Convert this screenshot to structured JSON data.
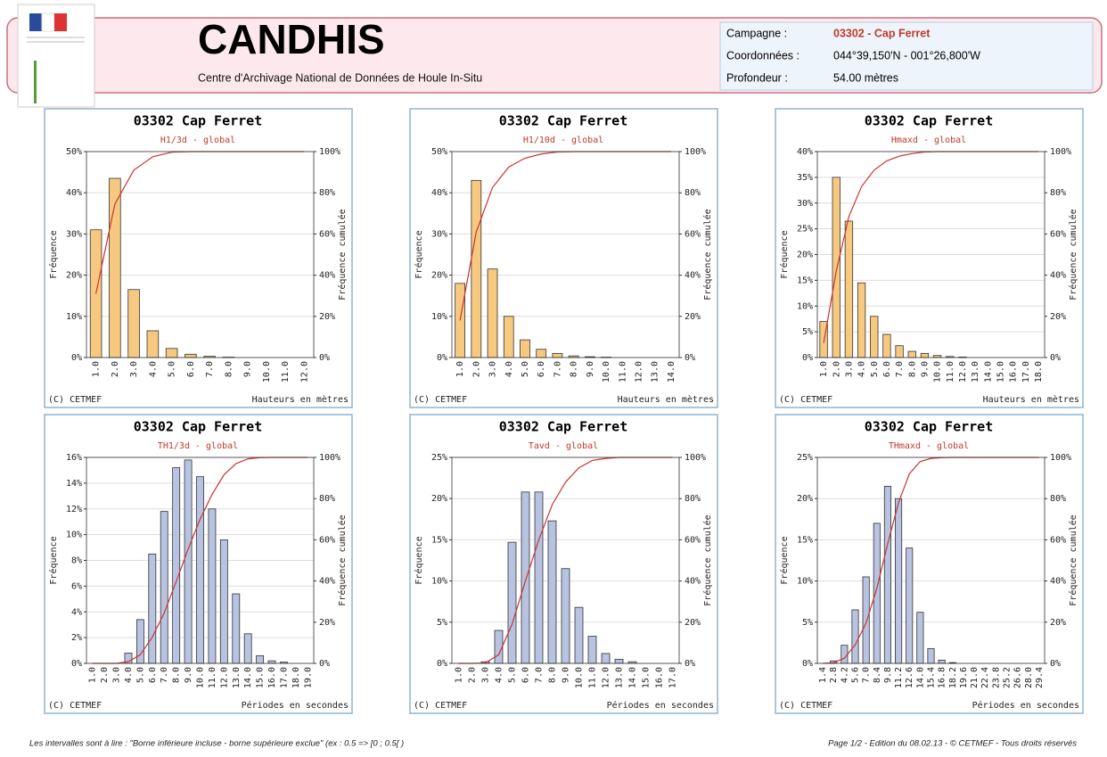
{
  "header": {
    "title": "CANDHIS",
    "subtitle": "Centre d'Archivage National de Données de Houle In-Situ",
    "fields": [
      {
        "label": "Campagne :",
        "value": "03302 - Cap Ferret"
      },
      {
        "label": "Coordonnées :",
        "value": "044°39,150'N - 001°26,800'W"
      },
      {
        "label": "Profondeur :",
        "value": "54.00 mètres"
      }
    ]
  },
  "chart_data": [
    {
      "type": "bar",
      "title": "03302 Cap Ferret",
      "subtitle": "H1/3d - global",
      "ylabel": "Fréquence",
      "y2label": "Fréquence cumulée",
      "xlabel": "Hauteurs en mètres",
      "credit": "(C) CETMEF",
      "grid": true,
      "categories": [
        "1.0",
        "2.0",
        "3.0",
        "4.0",
        "5.0",
        "6.0",
        "7.0",
        "8.0",
        "9.0",
        "10.0",
        "11.0",
        "12.0"
      ],
      "series": [
        {
          "color": "#f7c980",
          "values": [
            31,
            43.5,
            16.5,
            6.5,
            2.2,
            0.8,
            0.3,
            0.1,
            0,
            0,
            0,
            0
          ]
        },
        {
          "color": "#cc3333",
          "axis": "y2",
          "values": [
            31,
            74.5,
            91,
            97.5,
            99.7,
            100,
            100,
            100,
            100,
            100,
            100,
            100
          ]
        }
      ],
      "ylim": [
        0,
        50
      ],
      "yticks": [
        {
          "value": 0,
          "label": "0%"
        },
        {
          "value": 10,
          "label": "10%"
        },
        {
          "value": 20,
          "label": "20%"
        },
        {
          "value": 30,
          "label": "30%"
        },
        {
          "value": 40,
          "label": "40%"
        },
        {
          "value": 50,
          "label": "50%"
        }
      ],
      "y2lim": [
        0,
        100
      ],
      "y2ticks": [
        {
          "value": 0,
          "label": "0%"
        },
        {
          "value": 20,
          "label": "20%"
        },
        {
          "value": 40,
          "label": "40%"
        },
        {
          "value": 60,
          "label": "60%"
        },
        {
          "value": 80,
          "label": "80%"
        },
        {
          "value": 100,
          "label": "100%"
        }
      ]
    },
    {
      "type": "bar",
      "title": "03302 Cap Ferret",
      "subtitle": "H1/10d - global",
      "ylabel": "Fréquence",
      "y2label": "Fréquence cumulée",
      "xlabel": "Hauteurs en mètres",
      "credit": "(C) CETMEF",
      "grid": true,
      "categories": [
        "1.0",
        "2.0",
        "3.0",
        "4.0",
        "5.0",
        "6.0",
        "7.0",
        "8.0",
        "9.0",
        "10.0",
        "11.0",
        "12.0",
        "13.0",
        "14.0"
      ],
      "series": [
        {
          "color": "#f7c980",
          "values": [
            18,
            43,
            21.5,
            10,
            4.3,
            2,
            1,
            0.4,
            0.2,
            0.1,
            0,
            0,
            0,
            0
          ]
        },
        {
          "color": "#cc3333",
          "axis": "y2",
          "values": [
            18,
            61,
            82.5,
            92.5,
            96.8,
            98.8,
            99.8,
            100,
            100,
            100,
            100,
            100,
            100,
            100
          ]
        }
      ],
      "ylim": [
        0,
        50
      ],
      "yticks": [
        {
          "value": 0,
          "label": "0%"
        },
        {
          "value": 10,
          "label": "10%"
        },
        {
          "value": 20,
          "label": "20%"
        },
        {
          "value": 30,
          "label": "30%"
        },
        {
          "value": 40,
          "label": "40%"
        },
        {
          "value": 50,
          "label": "50%"
        }
      ],
      "y2lim": [
        0,
        100
      ],
      "y2ticks": [
        {
          "value": 0,
          "label": "0%"
        },
        {
          "value": 20,
          "label": "20%"
        },
        {
          "value": 40,
          "label": "40%"
        },
        {
          "value": 60,
          "label": "60%"
        },
        {
          "value": 80,
          "label": "80%"
        },
        {
          "value": 100,
          "label": "100%"
        }
      ]
    },
    {
      "type": "bar",
      "title": "03302 Cap Ferret",
      "subtitle": "Hmaxd - global",
      "ylabel": "Fréquence",
      "y2label": "Fréquence cumulée",
      "xlabel": "Hauteurs en mètres",
      "credit": "(C) CETMEF",
      "grid": true,
      "categories": [
        "1.0",
        "2.0",
        "3.0",
        "4.0",
        "5.0",
        "6.0",
        "7.0",
        "8.0",
        "9.0",
        "10.0",
        "11.0",
        "12.0",
        "13.0",
        "14.0",
        "15.0",
        "16.0",
        "17.0",
        "18.0"
      ],
      "series": [
        {
          "color": "#f7c980",
          "values": [
            7,
            35,
            26.5,
            14.5,
            8,
            4.5,
            2.3,
            1.2,
            0.8,
            0.4,
            0.2,
            0.1,
            0,
            0,
            0,
            0,
            0,
            0
          ]
        },
        {
          "color": "#cc3333",
          "axis": "y2",
          "values": [
            7,
            42,
            68.5,
            83,
            91,
            95.5,
            97.8,
            99,
            99.8,
            100,
            100,
            100,
            100,
            100,
            100,
            100,
            100,
            100
          ]
        }
      ],
      "ylim": [
        0,
        40
      ],
      "yticks": [
        {
          "value": 0,
          "label": "0%"
        },
        {
          "value": 5,
          "label": "5%"
        },
        {
          "value": 10,
          "label": "10%"
        },
        {
          "value": 15,
          "label": "15%"
        },
        {
          "value": 20,
          "label": "20%"
        },
        {
          "value": 25,
          "label": "25%"
        },
        {
          "value": 30,
          "label": "30%"
        },
        {
          "value": 35,
          "label": "35%"
        },
        {
          "value": 40,
          "label": "40%"
        }
      ],
      "y2lim": [
        0,
        100
      ],
      "y2ticks": [
        {
          "value": 0,
          "label": "0%"
        },
        {
          "value": 20,
          "label": "20%"
        },
        {
          "value": 40,
          "label": "40%"
        },
        {
          "value": 60,
          "label": "60%"
        },
        {
          "value": 80,
          "label": "80%"
        },
        {
          "value": 100,
          "label": "100%"
        }
      ]
    },
    {
      "type": "bar",
      "title": "03302 Cap Ferret",
      "subtitle": "TH1/3d - global",
      "ylabel": "Fréquence",
      "y2label": "Fréquence cumulée",
      "xlabel": "Périodes en secondes",
      "credit": "(C) CETMEF",
      "grid": true,
      "categories": [
        "1.0",
        "2.0",
        "3.0",
        "4.0",
        "5.0",
        "6.0",
        "7.0",
        "8.0",
        "9.0",
        "10.0",
        "11.0",
        "12.0",
        "13.0",
        "14.0",
        "15.0",
        "16.0",
        "17.0",
        "18.0",
        "19.0"
      ],
      "series": [
        {
          "color": "#b7c3e0",
          "values": [
            0,
            0,
            0,
            0.8,
            3.4,
            8.5,
            11.8,
            15.2,
            15.8,
            14.5,
            12,
            9.6,
            5.4,
            2.3,
            0.6,
            0.2,
            0.1,
            0,
            0
          ]
        },
        {
          "color": "#cc3333",
          "axis": "y2",
          "values": [
            0,
            0,
            0,
            0.8,
            4.2,
            12.7,
            24.5,
            39.7,
            55.5,
            70,
            82,
            91.6,
            97,
            99.3,
            99.9,
            100,
            100,
            100,
            100
          ]
        }
      ],
      "ylim": [
        0,
        16
      ],
      "yticks": [
        {
          "value": 0,
          "label": "0%"
        },
        {
          "value": 2,
          "label": "2%"
        },
        {
          "value": 4,
          "label": "4%"
        },
        {
          "value": 6,
          "label": "6%"
        },
        {
          "value": 8,
          "label": "8%"
        },
        {
          "value": 10,
          "label": "10%"
        },
        {
          "value": 12,
          "label": "12%"
        },
        {
          "value": 14,
          "label": "14%"
        },
        {
          "value": 16,
          "label": "16%"
        }
      ],
      "y2lim": [
        0,
        100
      ],
      "y2ticks": [
        {
          "value": 0,
          "label": "0%"
        },
        {
          "value": 20,
          "label": "20%"
        },
        {
          "value": 40,
          "label": "40%"
        },
        {
          "value": 60,
          "label": "60%"
        },
        {
          "value": 80,
          "label": "80%"
        },
        {
          "value": 100,
          "label": "100%"
        }
      ]
    },
    {
      "type": "bar",
      "title": "03302 Cap Ferret",
      "subtitle": "Tavd - global",
      "ylabel": "Fréquence",
      "y2label": "Fréquence cumulée",
      "xlabel": "Périodes en secondes",
      "credit": "(C) CETMEF",
      "grid": true,
      "categories": [
        "1.0",
        "2.0",
        "3.0",
        "4.0",
        "5.0",
        "6.0",
        "7.0",
        "8.0",
        "9.0",
        "10.0",
        "11.0",
        "12.0",
        "13.0",
        "14.0",
        "15.0",
        "16.0",
        "17.0"
      ],
      "series": [
        {
          "color": "#b7c3e0",
          "values": [
            0,
            0,
            0.2,
            4,
            14.7,
            20.8,
            20.8,
            17.3,
            11.5,
            6.8,
            3.3,
            1.2,
            0.5,
            0.2,
            0,
            0,
            0
          ]
        },
        {
          "color": "#cc3333",
          "axis": "y2",
          "values": [
            0,
            0,
            0.2,
            4.2,
            19,
            40,
            60,
            77,
            88,
            95,
            98.5,
            99.5,
            100,
            100,
            100,
            100,
            100
          ]
        }
      ],
      "ylim": [
        0,
        25
      ],
      "yticks": [
        {
          "value": 0,
          "label": "0%"
        },
        {
          "value": 5,
          "label": "5%"
        },
        {
          "value": 10,
          "label": "10%"
        },
        {
          "value": 15,
          "label": "15%"
        },
        {
          "value": 20,
          "label": "20%"
        },
        {
          "value": 25,
          "label": "25%"
        }
      ],
      "y2lim": [
        0,
        100
      ],
      "y2ticks": [
        {
          "value": 0,
          "label": "0%"
        },
        {
          "value": 20,
          "label": "20%"
        },
        {
          "value": 40,
          "label": "40%"
        },
        {
          "value": 60,
          "label": "60%"
        },
        {
          "value": 80,
          "label": "80%"
        },
        {
          "value": 100,
          "label": "100%"
        }
      ]
    },
    {
      "type": "bar",
      "title": "03302 Cap Ferret",
      "subtitle": "THmaxd - global",
      "ylabel": "Fréquence",
      "y2label": "Fréquence cumulée",
      "xlabel": "Périodes en secondes",
      "credit": "(C) CETMEF",
      "grid": true,
      "categories": [
        "1.4",
        "2.8",
        "4.2",
        "5.6",
        "7.0",
        "8.4",
        "9.8",
        "11.2",
        "12.6",
        "14.0",
        "15.4",
        "16.8",
        "18.2",
        "19.6",
        "21.0",
        "22.4",
        "23.8",
        "25.2",
        "26.6",
        "28.0",
        "29.4"
      ],
      "series": [
        {
          "color": "#b7c3e0",
          "values": [
            0,
            0.3,
            2.2,
            6.5,
            10.5,
            17,
            21.5,
            20,
            14,
            6.2,
            1.8,
            0.4,
            0.1,
            0,
            0,
            0,
            0,
            0,
            0,
            0,
            0
          ]
        },
        {
          "color": "#cc3333",
          "axis": "y2",
          "values": [
            0,
            0.3,
            2.5,
            9,
            19.5,
            36.5,
            58,
            78,
            92,
            98,
            99.5,
            99.9,
            100,
            100,
            100,
            100,
            100,
            100,
            100,
            100,
            100
          ]
        }
      ],
      "ylim": [
        0,
        25
      ],
      "yticks": [
        {
          "value": 0,
          "label": "0%"
        },
        {
          "value": 5,
          "label": "5%"
        },
        {
          "value": 10,
          "label": "10%"
        },
        {
          "value": 15,
          "label": "15%"
        },
        {
          "value": 20,
          "label": "20%"
        },
        {
          "value": 25,
          "label": "25%"
        }
      ],
      "y2lim": [
        0,
        100
      ],
      "y2ticks": [
        {
          "value": 0,
          "label": "0%"
        },
        {
          "value": 20,
          "label": "20%"
        },
        {
          "value": 40,
          "label": "40%"
        },
        {
          "value": 60,
          "label": "60%"
        },
        {
          "value": 80,
          "label": "80%"
        },
        {
          "value": 100,
          "label": "100%"
        }
      ]
    }
  ],
  "footer": {
    "note": "Les intervalles sont à lire : \"Borne inférieure incluse - borne supérieure exclue\" (ex : 0.5 => [0 ; 0.5[ )",
    "page": "Page 1/2 - Edition du 08.02.13 - © CETMEF - Tous droits réservés"
  }
}
